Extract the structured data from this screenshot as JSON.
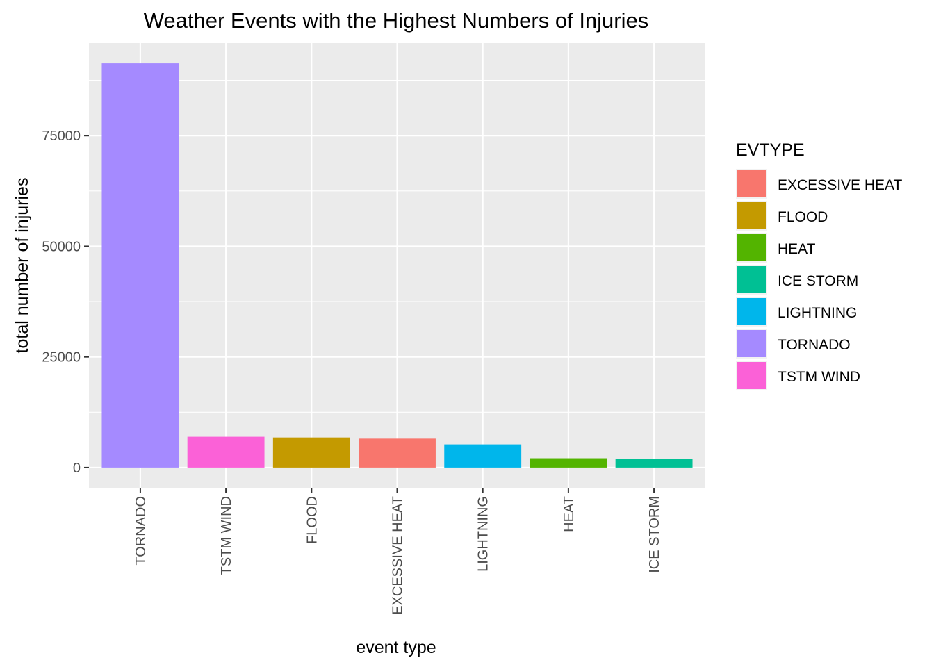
{
  "chart_data": {
    "type": "bar",
    "title": "Weather Events with the Highest Numbers of Injuries",
    "xlabel": "event type",
    "ylabel": "total number of injuries",
    "categories": [
      "TORNADO",
      "TSTM WIND",
      "FLOOD",
      "EXCESSIVE HEAT",
      "LIGHTNING",
      "HEAT",
      "ICE STORM"
    ],
    "values": [
      91346,
      6957,
      6789,
      6525,
      5230,
      2100,
      1975
    ],
    "colors": [
      "#A58AFF",
      "#FB61D7",
      "#C49A00",
      "#F8766D",
      "#00B6EB",
      "#53B400",
      "#00C094"
    ],
    "ylim": [
      -4567,
      95913
    ],
    "yticks": [
      0,
      25000,
      50000,
      75000
    ],
    "ytick_labels": [
      "0",
      "25000",
      "50000",
      "75000"
    ],
    "grid": true,
    "legend": {
      "title": "EVTYPE",
      "placement": "right",
      "items": [
        {
          "label": "EXCESSIVE HEAT",
          "color": "#F8766D"
        },
        {
          "label": "FLOOD",
          "color": "#C49A00"
        },
        {
          "label": "HEAT",
          "color": "#53B400"
        },
        {
          "label": "ICE STORM",
          "color": "#00C094"
        },
        {
          "label": "LIGHTNING",
          "color": "#00B6EB"
        },
        {
          "label": "TORNADO",
          "color": "#A58AFF"
        },
        {
          "label": "TSTM WIND",
          "color": "#FB61D7"
        }
      ]
    }
  }
}
